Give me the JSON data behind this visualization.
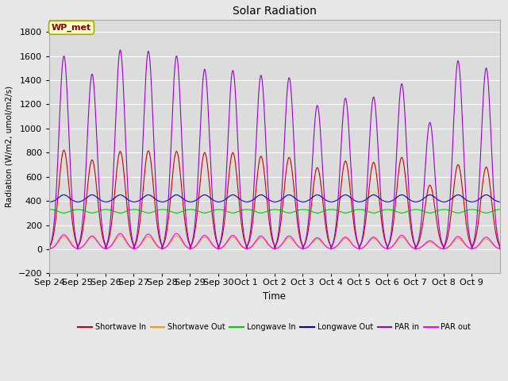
{
  "title": "Solar Radiation",
  "ylabel": "Radiation (W/m2, umol/m2/s)",
  "xlabel": "Time",
  "ylim": [
    -200,
    1900
  ],
  "yticks": [
    -200,
    0,
    200,
    400,
    600,
    800,
    1000,
    1200,
    1400,
    1600,
    1800
  ],
  "background_color": "#e8e8e8",
  "plot_bg_color": "#dcdcdc",
  "annotation_text": "WP_met",
  "annotation_box_color": "#ffffcc",
  "annotation_box_edgecolor": "#aaaa00",
  "n_days": 16,
  "day_labels": [
    "Sep 24",
    "Sep 25",
    "Sep 26",
    "Sep 27",
    "Sep 28",
    "Sep 29",
    "Sep 30",
    "Oct 1",
    "Oct 2",
    "Oct 3",
    "Oct 4",
    "Oct 5",
    "Oct 6",
    "Oct 7",
    "Oct 8",
    "Oct 9"
  ],
  "sw_in_peaks": [
    820,
    740,
    810,
    815,
    810,
    800,
    800,
    770,
    760,
    675,
    730,
    720,
    760,
    530,
    700,
    680
  ],
  "sw_out_peaks": [
    105,
    100,
    110,
    105,
    110,
    100,
    100,
    95,
    95,
    85,
    90,
    90,
    100,
    60,
    90,
    85
  ],
  "par_in_peaks": [
    1600,
    1450,
    1650,
    1640,
    1600,
    1490,
    1480,
    1440,
    1420,
    1190,
    1250,
    1260,
    1370,
    1050,
    1560,
    1500
  ],
  "par_out_peaks": [
    120,
    110,
    130,
    125,
    130,
    115,
    115,
    110,
    110,
    95,
    100,
    100,
    115,
    70,
    105,
    100
  ],
  "lw_in_base": 330,
  "lw_out_base": 390,
  "series_colors": {
    "shortwave_in": "#cc0000",
    "shortwave_out": "#ff9900",
    "longwave_in": "#00cc00",
    "longwave_out": "#0000cc",
    "par_in": "#9900cc",
    "par_out": "#ff00ff"
  },
  "legend_colors": [
    "#cc0000",
    "#ff9900",
    "#00cc00",
    "#0000cc",
    "#9900cc",
    "#ff00ff"
  ],
  "legend_labels": [
    "Shortwave In",
    "Shortwave Out",
    "Longwave In",
    "Longwave Out",
    "PAR in",
    "PAR out"
  ],
  "points_per_day": 144
}
